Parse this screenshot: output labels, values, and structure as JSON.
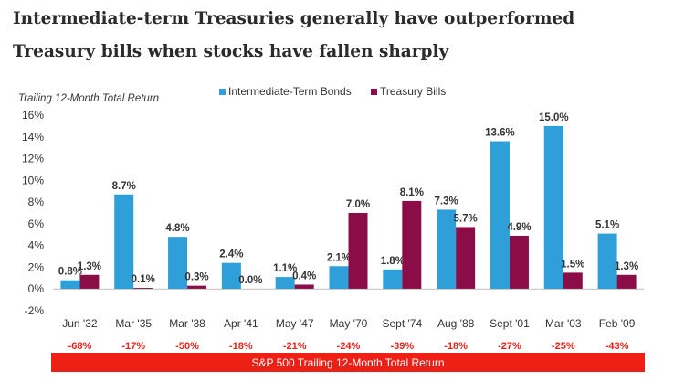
{
  "title_lines": [
    "Intermediate-term Treasuries generally have outperformed",
    "Treasury bills when stocks have fallen sharply"
  ],
  "chart_data": {
    "type": "bar",
    "title": "Intermediate-term Treasuries generally have outperformed Treasury bills when stocks have fallen sharply",
    "ylabel": "Trailing 12-Month Total Return",
    "ylim": [
      -2,
      16
    ],
    "yticks": [
      "-2%",
      "0%",
      "2%",
      "4%",
      "6%",
      "8%",
      "10%",
      "12%",
      "14%",
      "16%"
    ],
    "grid": false,
    "legend_position": "top",
    "categories": [
      "Jun '32",
      "Mar '35",
      "Mar '38",
      "Apr '41",
      "May '47",
      "May '70",
      "Sept '74",
      "Aug '88",
      "Sept '01",
      "Mar '03",
      "Feb '09"
    ],
    "series": [
      {
        "name": "Intermediate-Term Bonds",
        "color": "#2e9fd8",
        "values": [
          0.8,
          8.7,
          4.8,
          2.4,
          1.1,
          2.1,
          1.8,
          7.3,
          13.6,
          15.0,
          5.1
        ],
        "labels": [
          "0.8%",
          "8.7%",
          "4.8%",
          "2.4%",
          "1.1%",
          "2.1%",
          "1.8%",
          "7.3%",
          "13.6%",
          "15.0%",
          "5.1%"
        ]
      },
      {
        "name": "Treasury Bills",
        "color": "#8b0d48",
        "values": [
          1.3,
          0.1,
          0.3,
          0.0,
          0.4,
          7.0,
          8.1,
          5.7,
          4.9,
          1.5,
          1.3
        ],
        "labels": [
          "1.3%",
          "0.1%",
          "0.3%",
          "0.0%",
          "0.4%",
          "7.0%",
          "8.1%",
          "5.7%",
          "4.9%",
          "1.5%",
          "1.3%"
        ]
      }
    ],
    "sp500_returns": [
      "-68%",
      "-17%",
      "-50%",
      "-18%",
      "-21%",
      "-24%",
      "-39%",
      "-18%",
      "-27%",
      "-25%",
      "-43%"
    ],
    "sp500_banner": "S&P 500 Trailing 12-Month Total Return",
    "colors": {
      "sp500_text": "#e8231c",
      "banner_bg": "#ee2016",
      "banner_text": "#ffffff",
      "axis_text": "#333333"
    }
  }
}
